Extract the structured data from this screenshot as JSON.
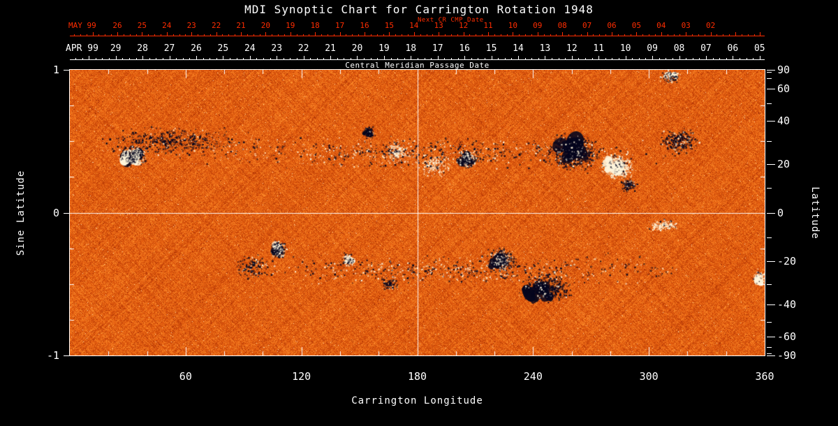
{
  "title": "MDI Synoptic Chart for Carrington Rotation 1948",
  "colors": {
    "background": "#000000",
    "text": "#ffffff",
    "date_axis_red": "#ff2d00",
    "frame": "#ffffff",
    "dark_region": "#06061e",
    "white_region": "#fff6dc"
  },
  "top_axes": {
    "next_cr_label": "Next CR CMP Date",
    "cmp_label": "Central Meridian Passage Date",
    "may": {
      "label": "MAY 99",
      "days": [
        "26",
        "25",
        "24",
        "23",
        "22",
        "21",
        "20",
        "19",
        "18",
        "17",
        "16",
        "15",
        "14",
        "13",
        "12",
        "11",
        "10",
        "09",
        "08",
        "07",
        "06",
        "05",
        "04",
        "03",
        "02"
      ]
    },
    "apr": {
      "label": "APR 99",
      "days": [
        "29",
        "28",
        "27",
        "26",
        "25",
        "24",
        "23",
        "22",
        "21",
        "20",
        "19",
        "18",
        "17",
        "16",
        "15",
        "14",
        "13",
        "12",
        "11",
        "10",
        "09",
        "08",
        "07",
        "06",
        "05"
      ]
    }
  },
  "chart_data": {
    "type": "heatmap",
    "title": "MDI Synoptic Chart for Carrington Rotation 1948",
    "x_axis": {
      "label": "Carrington Longitude",
      "range": [
        0,
        360
      ],
      "major_ticks": [
        60,
        120,
        180,
        240,
        300,
        360
      ],
      "minor_tick_step": 20
    },
    "y_axis_left": {
      "label": "Sine Latitude",
      "range": [
        -1,
        1
      ],
      "ticks": [
        1,
        0,
        -1
      ]
    },
    "y_axis_right": {
      "label": "Latitude",
      "labeled_ticks": [
        90,
        60,
        40,
        20,
        0,
        -20,
        -40,
        -60,
        -90
      ],
      "minor_tick_step_deg": 10
    },
    "reference_lines": {
      "longitude": 180,
      "sine_latitude": 0
    },
    "field_palette": [
      "#8c1e04",
      "#c84608",
      "#ea6412",
      "#ff9632",
      "#ffe3b4"
    ],
    "field_description": "Noisy orange solar magnetic flux map; dark patches = negative polarity, bright white patches = positive polarity active regions",
    "active_regions": [
      {
        "lon": 33,
        "slat": 0.4,
        "dlon": 9,
        "dslat": 0.09,
        "n": 420,
        "dark": 0.45,
        "core_dark": true,
        "core_white": true
      },
      {
        "lon": 55,
        "slat": 0.5,
        "dlon": 46,
        "dslat": 0.12,
        "n": 520,
        "dark": 0.9
      },
      {
        "lon": 155,
        "slat": 0.56,
        "dlon": 4,
        "dslat": 0.05,
        "n": 90,
        "dark": 0.9,
        "core_dark": true
      },
      {
        "lon": 170,
        "slat": 0.42,
        "dlon": 8,
        "dslat": 0.1,
        "n": 200,
        "dark": 0.15
      },
      {
        "lon": 206,
        "slat": 0.37,
        "dlon": 7,
        "dslat": 0.08,
        "n": 260,
        "dark": 0.6,
        "core_dark": true
      },
      {
        "lon": 261,
        "slat": 0.42,
        "dlon": 15,
        "dslat": 0.15,
        "n": 750,
        "dark": 0.88,
        "core_dark": true
      },
      {
        "lon": 284,
        "slat": 0.32,
        "dlon": 10,
        "dslat": 0.11,
        "n": 520,
        "dark": 0.12,
        "core_white": true
      },
      {
        "lon": 290,
        "slat": 0.19,
        "dlon": 5,
        "dslat": 0.05,
        "n": 130,
        "dark": 0.85
      },
      {
        "lon": 189,
        "slat": 0.33,
        "dlon": 10,
        "dslat": 0.1,
        "n": 180,
        "dark": 0.1
      },
      {
        "lon": 316,
        "slat": 0.5,
        "dlon": 12,
        "dslat": 0.11,
        "n": 300,
        "dark": 0.8
      },
      {
        "lon": 311,
        "slat": 0.95,
        "dlon": 6,
        "dslat": 0.05,
        "n": 140,
        "dark": 0.5,
        "core_white": true
      },
      {
        "lon": 108,
        "slat": -0.26,
        "dlon": 5,
        "dslat": 0.08,
        "n": 280,
        "dark": 0.55,
        "core_dark": true,
        "core_white": true
      },
      {
        "lon": 144,
        "slat": -0.33,
        "dlon": 4,
        "dslat": 0.05,
        "n": 150,
        "dark": 0.35,
        "core_white": true
      },
      {
        "lon": 166,
        "slat": -0.5,
        "dlon": 6,
        "dslat": 0.07,
        "n": 90,
        "dark": 0.85
      },
      {
        "lon": 224,
        "slat": -0.33,
        "dlon": 8,
        "dslat": 0.1,
        "n": 400,
        "dark": 0.7,
        "core_dark": true
      },
      {
        "lon": 247,
        "slat": -0.53,
        "dlon": 16,
        "dslat": 0.11,
        "n": 560,
        "dark": 0.9,
        "core_dark": true
      },
      {
        "lon": 308,
        "slat": -0.09,
        "dlon": 9,
        "dslat": 0.05,
        "n": 160,
        "dark": 0.1
      },
      {
        "lon": 357,
        "slat": -0.46,
        "dlon": 4,
        "dslat": 0.07,
        "n": 150,
        "dark": 0.1,
        "core_white": true
      },
      {
        "lon": 95,
        "slat": -0.38,
        "dlon": 12,
        "dslat": 0.1,
        "n": 150,
        "dark": 0.8
      },
      {
        "lon": 180,
        "slat": 0.42,
        "dlon": 160,
        "dslat": 0.13,
        "n": 850,
        "dark": 0.55
      },
      {
        "lon": 205,
        "slat": -0.4,
        "dlon": 145,
        "dslat": 0.13,
        "n": 750,
        "dark": 0.55
      }
    ]
  }
}
